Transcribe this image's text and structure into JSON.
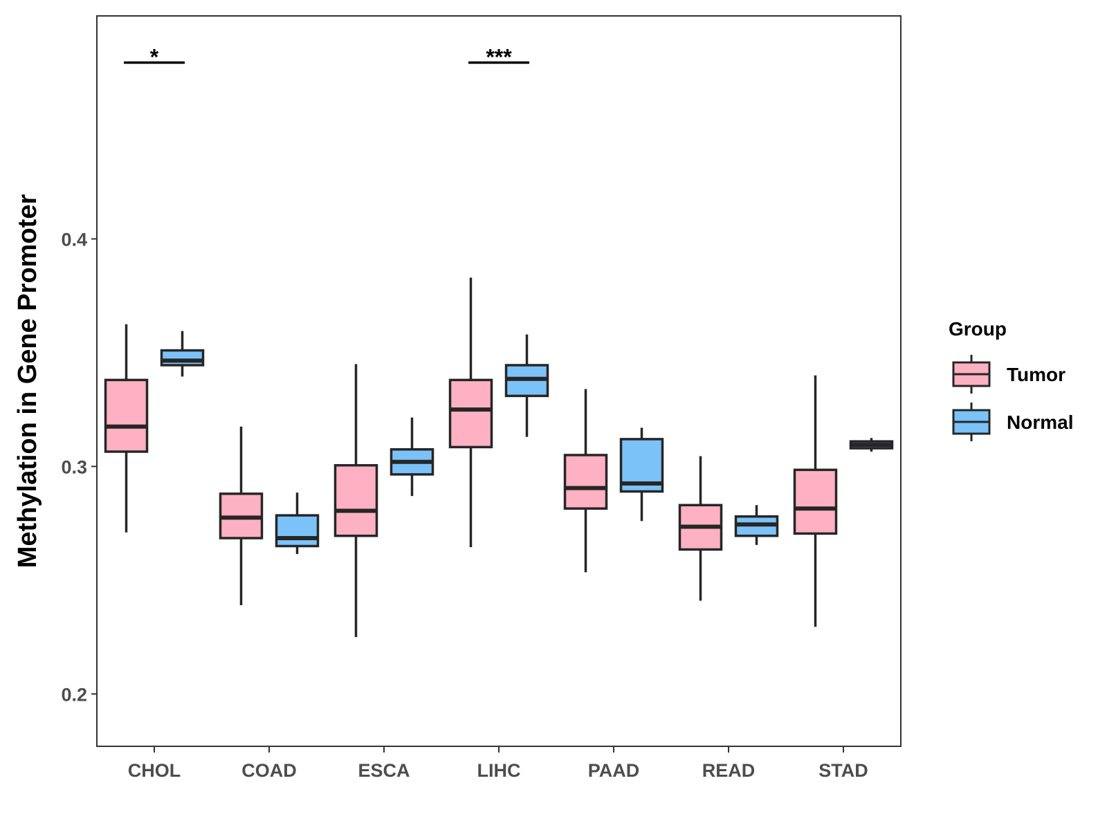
{
  "chart_data": {
    "type": "boxplot",
    "title": "",
    "xlabel": "",
    "ylabel": "Methylation in Gene Promoter",
    "ylim": [
      0.177,
      0.498
    ],
    "yticks": [
      0.2,
      0.3,
      0.4
    ],
    "ytick_labels": [
      "0.2",
      "0.3",
      "0.4"
    ],
    "categories": [
      "CHOL",
      "COAD",
      "ESCA",
      "LIHC",
      "PAAD",
      "READ",
      "STAD"
    ],
    "legend": {
      "title": "Group",
      "position": "right",
      "entries": [
        "Tumor",
        "Normal"
      ]
    },
    "colors": {
      "Tumor": "#FDB1C2",
      "Normal": "#7BC2F8",
      "outline": "#262626"
    },
    "series": [
      {
        "name": "Tumor",
        "boxes": [
          {
            "category": "CHOL",
            "whisker_low": 0.271,
            "q1": 0.3065,
            "median": 0.3175,
            "q3": 0.338,
            "whisker_high": 0.3625
          },
          {
            "category": "COAD",
            "whisker_low": 0.239,
            "q1": 0.2685,
            "median": 0.2775,
            "q3": 0.288,
            "whisker_high": 0.3175
          },
          {
            "category": "ESCA",
            "whisker_low": 0.225,
            "q1": 0.2695,
            "median": 0.2805,
            "q3": 0.3005,
            "whisker_high": 0.345
          },
          {
            "category": "LIHC",
            "whisker_low": 0.2645,
            "q1": 0.3085,
            "median": 0.325,
            "q3": 0.338,
            "whisker_high": 0.383
          },
          {
            "category": "PAAD",
            "whisker_low": 0.2535,
            "q1": 0.2815,
            "median": 0.2905,
            "q3": 0.305,
            "whisker_high": 0.334
          },
          {
            "category": "READ",
            "whisker_low": 0.241,
            "q1": 0.2635,
            "median": 0.2735,
            "q3": 0.283,
            "whisker_high": 0.3045
          },
          {
            "category": "STAD",
            "whisker_low": 0.2295,
            "q1": 0.2705,
            "median": 0.2815,
            "q3": 0.2985,
            "whisker_high": 0.34
          }
        ]
      },
      {
        "name": "Normal",
        "boxes": [
          {
            "category": "CHOL",
            "whisker_low": 0.3395,
            "q1": 0.3445,
            "median": 0.3465,
            "q3": 0.351,
            "whisker_high": 0.3595
          },
          {
            "category": "COAD",
            "whisker_low": 0.2615,
            "q1": 0.265,
            "median": 0.2685,
            "q3": 0.2785,
            "whisker_high": 0.2885
          },
          {
            "category": "ESCA",
            "whisker_low": 0.287,
            "q1": 0.2965,
            "median": 0.302,
            "q3": 0.3075,
            "whisker_high": 0.3215
          },
          {
            "category": "LIHC",
            "whisker_low": 0.313,
            "q1": 0.331,
            "median": 0.3385,
            "q3": 0.3445,
            "whisker_high": 0.358
          },
          {
            "category": "PAAD",
            "whisker_low": 0.276,
            "q1": 0.289,
            "median": 0.2925,
            "q3": 0.312,
            "whisker_high": 0.317
          },
          {
            "category": "READ",
            "whisker_low": 0.2655,
            "q1": 0.2695,
            "median": 0.2745,
            "q3": 0.278,
            "whisker_high": 0.283
          },
          {
            "category": "STAD",
            "whisker_low": 0.3065,
            "q1": 0.308,
            "median": 0.3095,
            "q3": 0.311,
            "whisker_high": 0.3125
          }
        ]
      }
    ],
    "annotations": [
      {
        "category": "CHOL",
        "label": "*",
        "y": 0.4775
      },
      {
        "category": "LIHC",
        "label": "***",
        "y": 0.4775
      }
    ]
  }
}
